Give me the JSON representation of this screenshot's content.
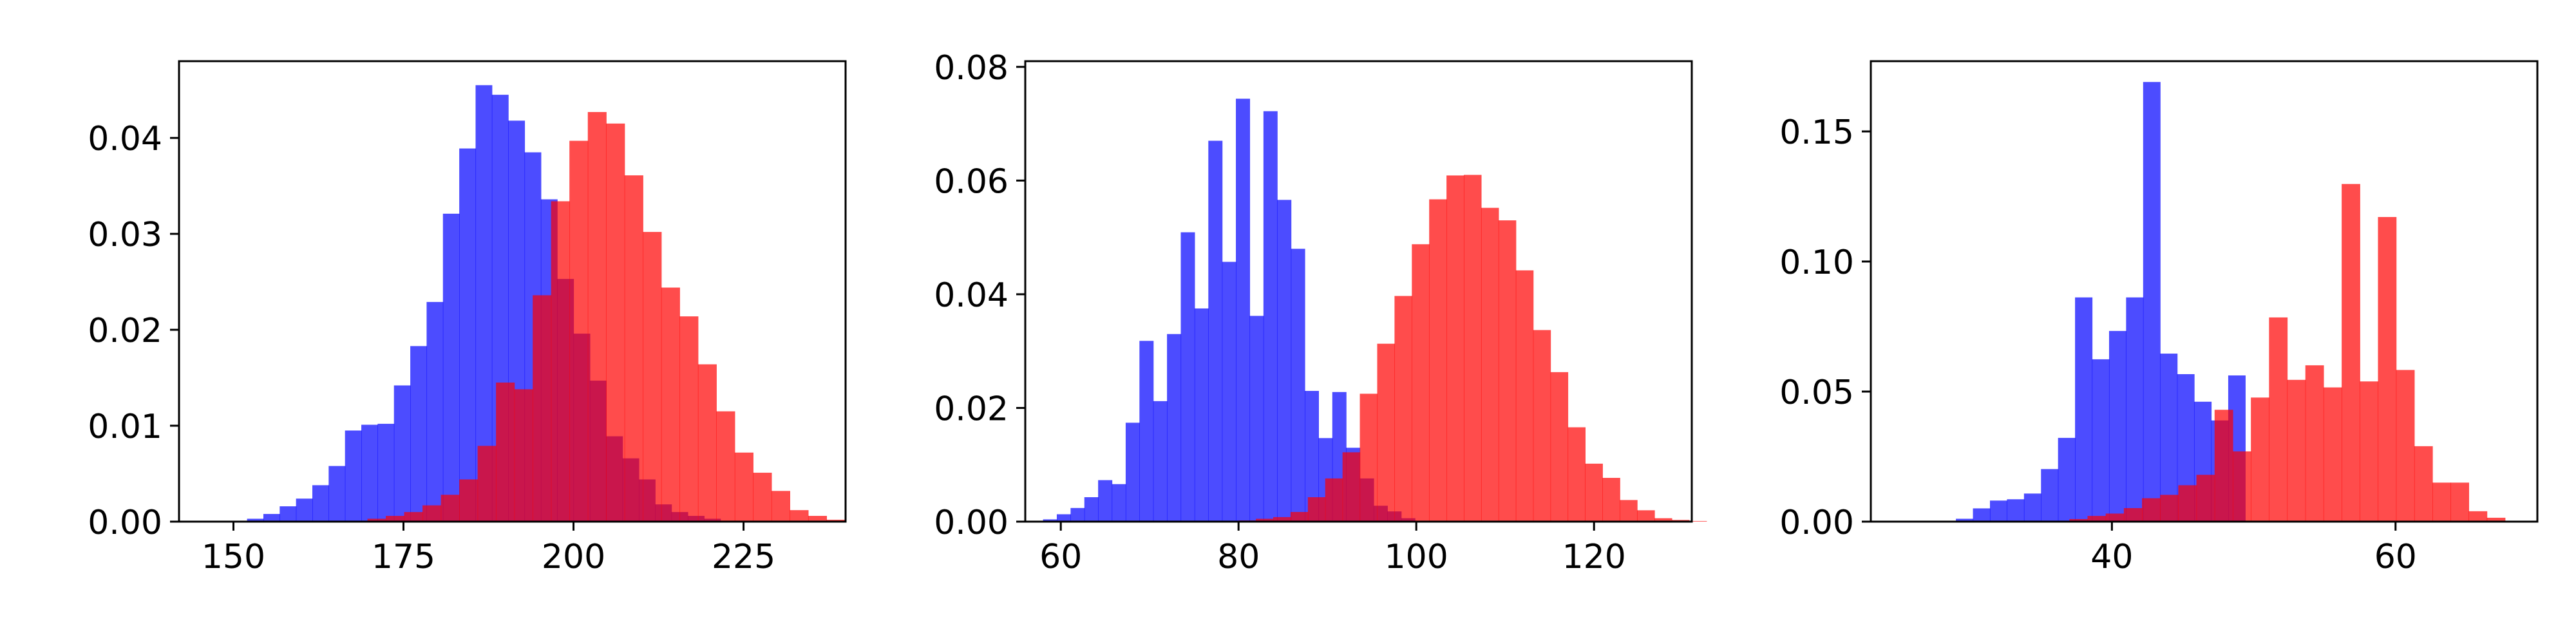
{
  "colors": {
    "series_a": "#0000ff",
    "series_b": "#ff0000",
    "bar_opacity": 0.7
  },
  "chart_data": [
    {
      "type": "bar",
      "subtype": "histogram",
      "title": "",
      "xlabel": "",
      "ylabel": "",
      "xlim": [
        142,
        240
      ],
      "ylim": [
        0,
        0.048
      ],
      "xticks": [
        150,
        175,
        200,
        225
      ],
      "yticks": [
        0.0,
        0.01,
        0.02,
        0.03,
        0.04
      ],
      "ytick_labels": [
        "0.00",
        "0.01",
        "0.02",
        "0.03",
        "0.04"
      ],
      "grid": false,
      "series": [
        {
          "color": "#0000ff",
          "bin_start": 152,
          "bin_width": 2.4,
          "values": [
            0.0003,
            0.0008,
            0.0016,
            0.0024,
            0.0038,
            0.0058,
            0.0095,
            0.0101,
            0.0102,
            0.0142,
            0.0183,
            0.0229,
            0.0321,
            0.0389,
            0.0455,
            0.0445,
            0.0418,
            0.0385,
            0.0336,
            0.0253,
            0.0196,
            0.0147,
            0.0089,
            0.0066,
            0.0044,
            0.0018,
            0.001,
            0.0006,
            0.0003
          ]
        },
        {
          "color": "#ff0000",
          "bin_start": 167,
          "bin_width": 2.7,
          "values": [
            0.0001,
            0.0003,
            0.0006,
            0.001,
            0.0017,
            0.0028,
            0.0044,
            0.0079,
            0.0145,
            0.0138,
            0.0236,
            0.0334,
            0.0397,
            0.0427,
            0.0415,
            0.0361,
            0.0302,
            0.0244,
            0.0214,
            0.0164,
            0.0115,
            0.0072,
            0.0051,
            0.0032,
            0.0012,
            0.0006,
            0.0002
          ]
        }
      ]
    },
    {
      "type": "bar",
      "subtype": "histogram",
      "title": "",
      "xlabel": "",
      "ylabel": "",
      "xlim": [
        56,
        131
      ],
      "ylim": [
        0,
        0.081
      ],
      "xticks": [
        60,
        80,
        100,
        120
      ],
      "yticks": [
        0.0,
        0.02,
        0.04,
        0.06,
        0.08
      ],
      "ytick_labels": [
        "0.00",
        "0.02",
        "0.04",
        "0.06",
        "0.08"
      ],
      "grid": false,
      "series": [
        {
          "color": "#0000ff",
          "bin_start": 58,
          "bin_width": 1.55,
          "values": [
            0.0004,
            0.0013,
            0.0024,
            0.0043,
            0.0073,
            0.0066,
            0.0174,
            0.0318,
            0.0212,
            0.033,
            0.0509,
            0.0375,
            0.067,
            0.0457,
            0.0744,
            0.0362,
            0.0722,
            0.0566,
            0.048,
            0.023,
            0.0147,
            0.0228,
            0.013,
            0.0076,
            0.0028,
            0.0018,
            0.0006
          ]
        },
        {
          "color": "#ff0000",
          "bin_start": 80,
          "bin_width": 1.95,
          "values": [
            0.0002,
            0.0005,
            0.0008,
            0.0017,
            0.0043,
            0.0076,
            0.0122,
            0.0225,
            0.0313,
            0.0397,
            0.0488,
            0.0567,
            0.0609,
            0.061,
            0.0552,
            0.053,
            0.0442,
            0.0337,
            0.0263,
            0.0166,
            0.0102,
            0.0077,
            0.0038,
            0.002,
            0.0006,
            0.0003,
            0.0001
          ]
        }
      ]
    },
    {
      "type": "bar",
      "subtype": "histogram",
      "title": "",
      "xlabel": "",
      "ylabel": "",
      "xlim": [
        23,
        70
      ],
      "ylim": [
        0,
        0.177
      ],
      "xticks": [
        40,
        60
      ],
      "yticks": [
        0.0,
        0.05,
        0.1,
        0.15
      ],
      "ytick_labels": [
        "0.00",
        "0.05",
        "0.10",
        "0.15"
      ],
      "grid": false,
      "series": [
        {
          "color": "#0000ff",
          "bin_start": 29,
          "bin_width": 1.2,
          "values": [
            0.0011,
            0.0051,
            0.0081,
            0.0086,
            0.0108,
            0.0202,
            0.0322,
            0.0862,
            0.0624,
            0.0733,
            0.0862,
            0.169,
            0.0646,
            0.0567,
            0.0461,
            0.0389,
            0.0562
          ]
        },
        {
          "color": "#ff0000",
          "bin_start": 37,
          "bin_width": 1.28,
          "values": [
            0.001,
            0.0022,
            0.0031,
            0.0052,
            0.009,
            0.0103,
            0.014,
            0.018,
            0.043,
            0.027,
            0.0477,
            0.0785,
            0.0545,
            0.0601,
            0.0516,
            0.1298,
            0.0539,
            0.1171,
            0.0583,
            0.029,
            0.015,
            0.015,
            0.004,
            0.0015
          ]
        }
      ]
    }
  ]
}
